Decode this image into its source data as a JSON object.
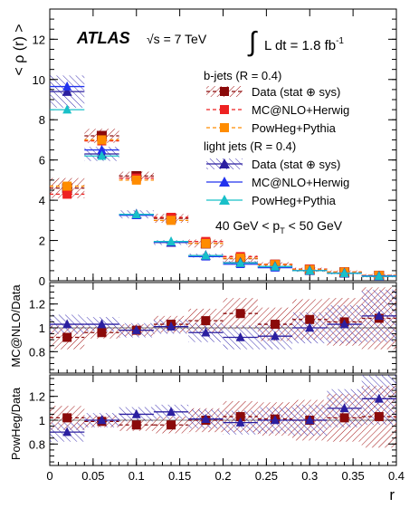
{
  "chart_data": [
    {
      "type": "scatter",
      "panel": "main",
      "ylabel": "< ρ (r) >",
      "ylim": [
        0,
        13.5
      ],
      "yticks": [
        0,
        2,
        4,
        6,
        8,
        10,
        12
      ],
      "x": [
        0.02,
        0.06,
        0.1,
        0.14,
        0.18,
        0.22,
        0.26,
        0.3,
        0.34,
        0.38
      ],
      "bin_halfwidth": 0.02,
      "series": [
        {
          "name": "Data (stat ⊕ sys)",
          "group": "b-jets",
          "style": "data-bjet",
          "values": [
            4.6,
            7.2,
            5.2,
            3.1,
            1.85,
            1.1,
            0.8,
            0.55,
            0.42,
            0.25
          ],
          "errors": [
            0.5,
            0.35,
            0.22,
            0.22,
            0.2,
            0.15,
            0.12,
            0.1,
            0.09,
            0.08
          ]
        },
        {
          "name": "MC@NLO+Herwig",
          "group": "b-jets",
          "style": "mc-bjet",
          "values": [
            4.3,
            6.95,
            5.1,
            3.15,
            1.95,
            1.2,
            0.82,
            0.58,
            0.44,
            0.27
          ]
        },
        {
          "name": "PowHeg+Pythia",
          "group": "b-jets",
          "style": "pow-bjet",
          "values": [
            4.7,
            7.0,
            5.0,
            3.0,
            1.85,
            1.12,
            0.8,
            0.55,
            0.43,
            0.26
          ]
        },
        {
          "name": "Data (stat ⊕ sys)",
          "group": "light jets",
          "style": "data-light",
          "values": [
            9.4,
            6.3,
            3.3,
            1.9,
            1.25,
            0.9,
            0.7,
            0.5,
            0.37,
            0.22
          ],
          "errors": [
            0.8,
            0.35,
            0.2,
            0.12,
            0.1,
            0.08,
            0.07,
            0.06,
            0.05,
            0.05
          ]
        },
        {
          "name": "MC@NLO+Herwig",
          "group": "light jets",
          "style": "mc-light",
          "values": [
            9.65,
            6.5,
            3.25,
            1.92,
            1.2,
            0.82,
            0.65,
            0.5,
            0.38,
            0.24
          ]
        },
        {
          "name": "PowHeg+Pythia",
          "group": "light jets",
          "style": "pow-light",
          "values": [
            8.5,
            6.2,
            3.3,
            1.95,
            1.25,
            0.88,
            0.7,
            0.5,
            0.37,
            0.22
          ]
        }
      ],
      "legend": {
        "b_jets_header": "b-jets (R = 0.4)",
        "light_jets_header": "light jets (R = 0.4)",
        "placement": "top-right"
      },
      "annotations": {
        "atlas": "ATLAS",
        "sqrt_s": "√s = 7 TeV",
        "lumi_prefix": "L dt = 1.8 fb",
        "lumi_exp": "-1",
        "pt_range_left": "40 GeV < p",
        "pt_range_sub": "T",
        "pt_range_right": " < 50 GeV"
      }
    },
    {
      "type": "scatter",
      "panel": "ratio-mcnlo",
      "ylabel": "MC@NLO/Data",
      "ylim": [
        0.62,
        1.38
      ],
      "yticks": [
        0.8,
        1.0,
        1.2
      ],
      "ytick_labels": [
        "0.8",
        "1",
        "1.2"
      ],
      "x": [
        0.02,
        0.06,
        0.1,
        0.14,
        0.18,
        0.22,
        0.26,
        0.3,
        0.34,
        0.38
      ],
      "series": [
        {
          "name": "b-jets",
          "style": "ratio-bjet",
          "values": [
            0.92,
            0.96,
            0.98,
            1.03,
            1.06,
            1.12,
            1.03,
            1.07,
            1.05,
            1.08
          ],
          "errors": [
            0.1,
            0.05,
            0.05,
            0.07,
            0.1,
            0.13,
            0.14,
            0.17,
            0.2,
            0.26
          ]
        },
        {
          "name": "light jets",
          "style": "ratio-light",
          "values": [
            1.03,
            1.03,
            0.98,
            1.01,
            0.96,
            0.92,
            0.93,
            1.0,
            1.03,
            1.1
          ],
          "errors": [
            0.08,
            0.06,
            0.06,
            0.06,
            0.08,
            0.1,
            0.11,
            0.13,
            0.16,
            0.22
          ]
        }
      ]
    },
    {
      "type": "scatter",
      "panel": "ratio-powheg",
      "xlabel": "r",
      "ylabel": "PowHeg/Data",
      "xlim": [
        0,
        0.4
      ],
      "xticks": [
        0,
        0.05,
        0.1,
        0.15,
        0.2,
        0.25,
        0.3,
        0.35,
        0.4
      ],
      "ylim": [
        0.62,
        1.38
      ],
      "yticks": [
        0.8,
        1.0,
        1.2
      ],
      "ytick_labels": [
        "0.8",
        "1",
        "1.2"
      ],
      "x": [
        0.02,
        0.06,
        0.1,
        0.14,
        0.18,
        0.22,
        0.26,
        0.3,
        0.34,
        0.38
      ],
      "series": [
        {
          "name": "b-jets",
          "style": "ratio-bjet",
          "values": [
            1.02,
            0.99,
            0.96,
            0.96,
            1.0,
            1.03,
            1.01,
            1.0,
            1.02,
            1.03
          ],
          "errors": [
            0.1,
            0.05,
            0.05,
            0.07,
            0.1,
            0.13,
            0.14,
            0.17,
            0.2,
            0.26
          ]
        },
        {
          "name": "light jets",
          "style": "ratio-light",
          "values": [
            0.9,
            1.0,
            1.05,
            1.07,
            1.01,
            0.98,
            1.0,
            1.0,
            1.1,
            1.18
          ],
          "errors": [
            0.08,
            0.06,
            0.06,
            0.06,
            0.08,
            0.1,
            0.11,
            0.13,
            0.16,
            0.22
          ]
        }
      ]
    }
  ],
  "colors": {
    "data_bjet": "#8b0a0a",
    "mc_bjet": "#ee2222",
    "pow_bjet": "#ff8c00",
    "data_light": "#2b1fa0",
    "mc_light": "#2233ee",
    "pow_light": "#18c0c8"
  }
}
